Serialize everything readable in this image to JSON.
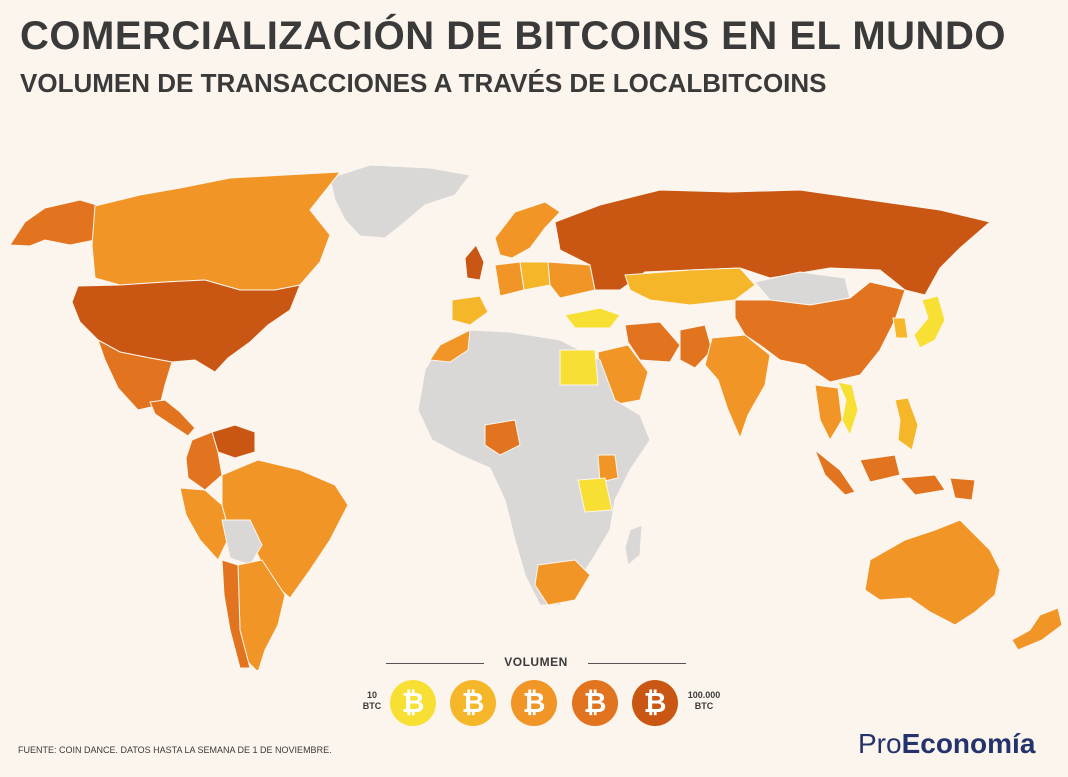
{
  "header": {
    "title": "COMERCIALIZACIÓN DE BITCOINS EN EL MUNDO",
    "subtitle": "VOLUMEN DE TRANSACCIONES A TRAVÉS DE LOCALBITCOINS"
  },
  "legend": {
    "title": "VOLUMEN",
    "min_label_value": "10",
    "min_label_unit": "BTC",
    "max_label_value": "100.000",
    "max_label_unit": "BTC",
    "coin_symbol": "₿",
    "scale_colors": [
      "#f8df34",
      "#f6b62a",
      "#f19526",
      "#e2731f",
      "#c95713"
    ]
  },
  "map": {
    "no_data_color": "#d9d8d6",
    "ocean_color": "#fcf5ed",
    "country_levels": {
      "united_states": 5,
      "russia": 5,
      "venezuela": 5,
      "united_kingdom": 5,
      "canada": 3,
      "alaska": 4,
      "greenland": 0,
      "mexico": 4,
      "central_america": 4,
      "colombia": 4,
      "brazil": 3,
      "peru": 3,
      "argentina": 3,
      "chile": 4,
      "bolivia": 0,
      "uruguay": 0,
      "china": 4,
      "india": 3,
      "iran": 4,
      "saudi_arabia": 3,
      "pakistan": 4,
      "kazakhstan": 2,
      "mongolia": 0,
      "japan": 1,
      "korea": 2,
      "egypt": 1,
      "turkey": 1,
      "nigeria": 4,
      "kenya": 3,
      "tanzania": 1,
      "south_africa": 3,
      "morocco": 3,
      "australia": 3,
      "new_zealand": 3,
      "indonesia": 4,
      "philippines": 2,
      "thailand": 3,
      "vietnam": 1,
      "scandinavia": 3,
      "ukraine": 3,
      "poland": 2,
      "germany": 3,
      "spain": 2,
      "africa_rest": 0
    }
  },
  "footer": {
    "source": "FUENTE: COIN DANCE. DATOS HASTA LA SEMANA DE 1 DE NOVIEMBRE.",
    "brand_light": "Pro",
    "brand_bold": "Economía"
  }
}
